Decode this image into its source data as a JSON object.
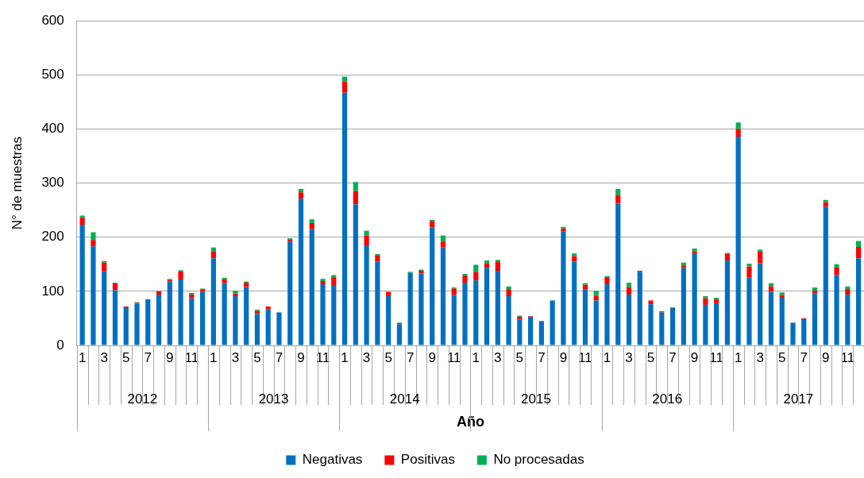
{
  "chart_data": {
    "type": "bar",
    "stacked": true,
    "xlabel": "Año",
    "ylabel": "N° de muestras",
    "categories": [
      "1",
      null,
      "3",
      null,
      "5",
      null,
      "7",
      null,
      "9",
      null,
      "11",
      null,
      "1",
      null,
      "3",
      null,
      "5",
      null,
      "7",
      null,
      "9",
      null,
      "11",
      null,
      "1",
      null,
      "3",
      null,
      "5",
      null,
      "7",
      null,
      "9",
      null,
      "11",
      null,
      "1",
      null,
      "3",
      null,
      "5",
      null,
      "7",
      null,
      "9",
      null,
      "11",
      null,
      "1",
      null,
      "3",
      null,
      "5",
      null,
      "7",
      null,
      "9",
      null,
      "11",
      null,
      "1",
      null,
      "3",
      null,
      "5",
      null,
      "7",
      null,
      "9",
      null,
      "11",
      null
    ],
    "series": [
      {
        "name": "Negativas",
        "color": "#0070c0",
        "values": [
          223,
          183,
          137,
          102,
          69,
          77,
          85,
          94,
          118,
          122,
          87,
          99,
          161,
          115,
          91,
          108,
          58,
          67,
          61,
          192,
          271,
          215,
          113,
          110,
          467,
          261,
          185,
          155,
          91,
          39,
          134,
          133,
          218,
          181,
          93,
          116,
          120,
          143,
          138,
          91,
          48,
          53,
          45,
          83,
          211,
          155,
          104,
          83,
          113,
          262,
          94,
          136,
          76,
          61,
          69,
          143,
          169,
          75,
          78,
          157,
          386,
          126,
          152,
          99,
          88,
          42,
          47,
          96,
          256,
          130,
          94,
          161
        ]
      },
      {
        "name": "Positivas",
        "color": "#ff0000",
        "values": [
          13,
          12,
          16,
          13,
          3,
          2,
          0,
          6,
          3,
          15,
          7,
          5,
          13,
          7,
          5,
          8,
          6,
          5,
          0,
          3,
          12,
          11,
          6,
          16,
          21,
          24,
          18,
          12,
          8,
          2,
          0,
          5,
          12,
          11,
          12,
          13,
          16,
          9,
          16,
          13,
          5,
          1,
          0,
          null,
          5,
          10,
          8,
          9,
          13,
          16,
          14,
          2,
          7,
          2,
          1,
          5,
          5,
          12,
          7,
          12,
          14,
          20,
          22,
          10,
          5,
          0,
          3,
          5,
          9,
          14,
          10,
          21
        ]
      },
      {
        "name": "No procesadas",
        "color": "#00b050",
        "values": [
          4,
          14,
          3,
          1,
          0,
          1,
          0,
          0,
          2,
          2,
          3,
          1,
          7,
          3,
          5,
          2,
          2,
          0,
          0,
          3,
          6,
          7,
          4,
          4,
          9,
          17,
          9,
          2,
          null,
          1,
          2,
          2,
          2,
          11,
          2,
          3,
          13,
          5,
          4,
          5,
          2,
          0,
          0,
          0,
          3,
          5,
          3,
          9,
          2,
          11,
          8,
          0,
          0,
          0,
          0,
          5,
          5,
          4,
          3,
          2,
          12,
          5,
          3,
          6,
          5,
          null,
          0,
          6,
          4,
          6,
          5,
          11
        ]
      }
    ],
    "annotations": [
      "2012",
      "2013",
      "2014",
      "2015",
      "2016",
      "2017"
    ],
    "ylim": [
      0,
      600
    ],
    "yticks": [
      0,
      100,
      200,
      300,
      400,
      500,
      600
    ],
    "grid": "y",
    "legend": "bottom"
  }
}
